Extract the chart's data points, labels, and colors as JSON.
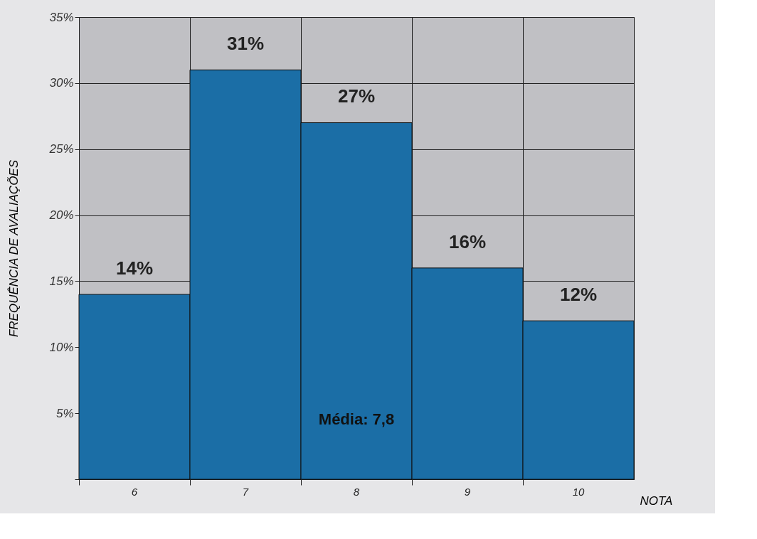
{
  "chart_data": {
    "type": "bar",
    "xlabel": "NOTA",
    "ylabel": "FREQUÊNCIA DE AVALIAÇÕES",
    "categories": [
      "6",
      "7",
      "8",
      "9",
      "10"
    ],
    "values": [
      14,
      31,
      27,
      16,
      12
    ],
    "value_labels": [
      "14%",
      "31%",
      "27%",
      "16%",
      "12%"
    ],
    "color": "#1b6ea6",
    "ylim": [
      0,
      35
    ],
    "yticks": [
      {
        "value": 0,
        "label": null
      },
      {
        "value": 5,
        "label": "5%"
      },
      {
        "value": 10,
        "label": "10%"
      },
      {
        "value": 15,
        "label": "15%"
      },
      {
        "value": 20,
        "label": "20%"
      },
      {
        "value": 25,
        "label": "25%"
      },
      {
        "value": 30,
        "label": "30%"
      },
      {
        "value": 35,
        "label": "35%"
      }
    ],
    "grid": true,
    "annotations": [
      "Média: 7,8"
    ]
  }
}
